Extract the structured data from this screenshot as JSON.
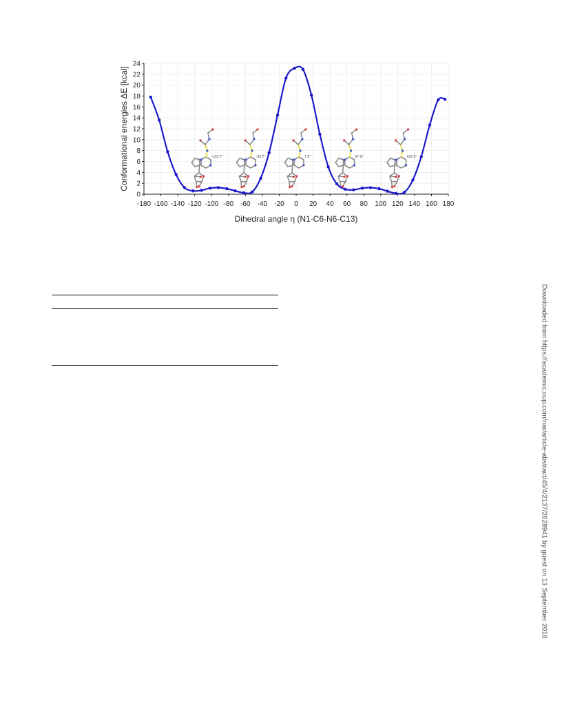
{
  "chart_data": {
    "type": "line",
    "title": "",
    "xlabel": "Dihedral angle η (N1-C6-N6-C13)",
    "ylabel": "Conformational energies  ΔE [kcal]",
    "xlim": [
      -180,
      180
    ],
    "ylim": [
      0,
      24
    ],
    "xticks": [
      -180,
      -160,
      -140,
      -120,
      -100,
      -80,
      -60,
      -40,
      -20,
      0,
      20,
      40,
      60,
      80,
      100,
      120,
      140,
      160,
      180
    ],
    "yticks": [
      0,
      2,
      4,
      6,
      8,
      10,
      12,
      14,
      16,
      18,
      20,
      22,
      24
    ],
    "grid": true,
    "series": [
      {
        "color": "#1a1acc",
        "x": [
          -172,
          -162,
          -152,
          -142,
          -132,
          -122,
          -112,
          -102,
          -92,
          -82,
          -72,
          -62,
          -52,
          -42,
          -32,
          -22,
          -12,
          -2,
          8,
          18,
          28,
          38,
          48,
          58,
          68,
          78,
          88,
          98,
          108,
          118,
          128,
          138,
          148,
          158,
          168,
          176
        ],
        "y": [
          17.8,
          13.6,
          7.8,
          3.6,
          1.2,
          0.6,
          0.7,
          1.1,
          1.2,
          1.0,
          0.6,
          0.25,
          0.4,
          2.9,
          7.6,
          14.5,
          21.3,
          23.1,
          22.9,
          18.2,
          11.0,
          5.0,
          1.9,
          0.9,
          0.8,
          1.1,
          1.2,
          1.0,
          0.55,
          0.15,
          0.35,
          2.6,
          6.9,
          12.7,
          17.3,
          17.4
        ]
      }
    ],
    "annotations": [
      "-122.7°",
      "-52.7°",
      "7.3°",
      "67.3°",
      "127.3°"
    ]
  },
  "side_note": "Downloaded from https://academic.oup.com/nar/article-abstract/45/4/2137/2628941 by guest on 13 September 2018"
}
